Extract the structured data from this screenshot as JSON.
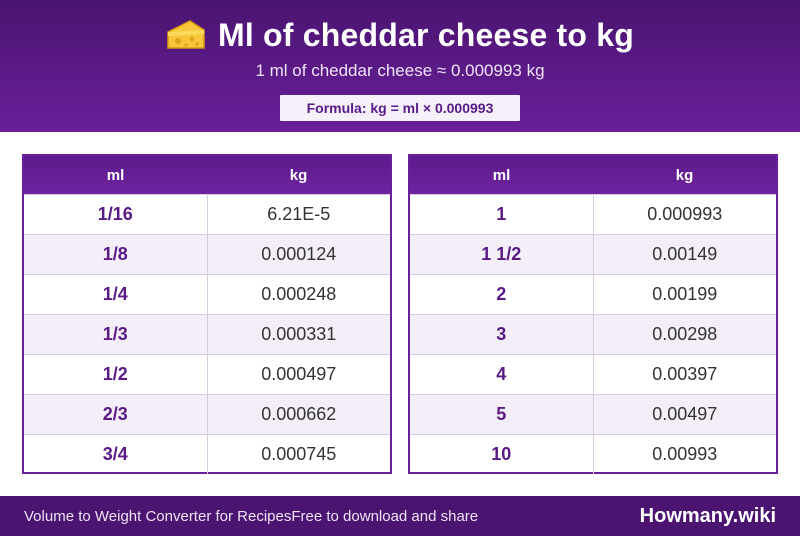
{
  "header": {
    "title": "Ml of cheddar cheese to kg",
    "icon": "cheese-icon",
    "subtitle": "1 ml of cheddar cheese ≈ 0.000993 kg",
    "formula": "Formula: kg = ml × 0.000993"
  },
  "tables": [
    {
      "col_ml": "ml",
      "col_kg": "kg",
      "rows": [
        {
          "ml": "1/16",
          "kg": "6.21E-5"
        },
        {
          "ml": "1/8",
          "kg": "0.000124"
        },
        {
          "ml": "1/4",
          "kg": "0.000248"
        },
        {
          "ml": "1/3",
          "kg": "0.000331"
        },
        {
          "ml": "1/2",
          "kg": "0.000497"
        },
        {
          "ml": "2/3",
          "kg": "0.000662"
        },
        {
          "ml": "3/4",
          "kg": "0.000745"
        }
      ]
    },
    {
      "col_ml": "ml",
      "col_kg": "kg",
      "rows": [
        {
          "ml": "1",
          "kg": "0.000993"
        },
        {
          "ml": "1 1/2",
          "kg": "0.00149"
        },
        {
          "ml": "2",
          "kg": "0.00199"
        },
        {
          "ml": "3",
          "kg": "0.00298"
        },
        {
          "ml": "4",
          "kg": "0.00397"
        },
        {
          "ml": "5",
          "kg": "0.00497"
        },
        {
          "ml": "10",
          "kg": "0.00993"
        }
      ]
    }
  ],
  "footer": {
    "left_text_1": "Volume to Weight Converter for Recipes",
    "left_text_2": "Free to download and share",
    "brand": "Howmany.wiki"
  },
  "colors": {
    "header_bg": "#4a1470",
    "accent": "#6a1f9a",
    "alt_row": "#f3eef8"
  }
}
